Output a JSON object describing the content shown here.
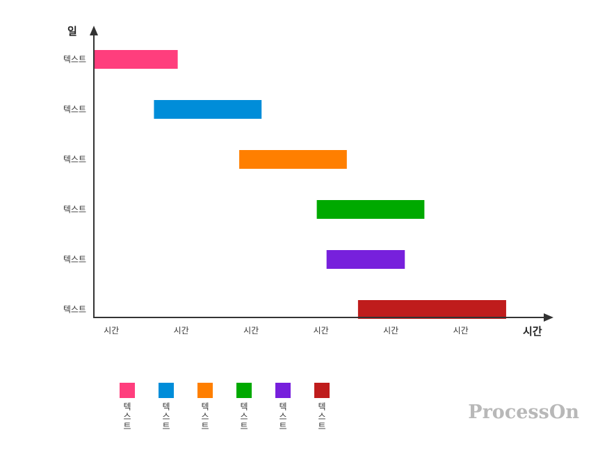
{
  "chart_data": {
    "type": "gantt",
    "title": "",
    "xlabel": "시간",
    "ylabel": "일",
    "x_tick_labels": [
      "시간",
      "시간",
      "시간",
      "시간",
      "시간",
      "시간"
    ],
    "xlim": [
      0,
      6.6
    ],
    "tasks": [
      {
        "label": "텍스트",
        "start": 0.0,
        "end": 1.2,
        "color": "#FF3E7D"
      },
      {
        "label": "텍스트",
        "start": 0.86,
        "end": 2.4,
        "color": "#008DD9"
      },
      {
        "label": "텍스트",
        "start": 2.08,
        "end": 3.62,
        "color": "#FF7F00"
      },
      {
        "label": "텍스트",
        "start": 3.19,
        "end": 4.73,
        "color": "#00A900"
      },
      {
        "label": "텍스트",
        "start": 3.33,
        "end": 4.45,
        "color": "#7720DC"
      },
      {
        "label": "텍스트",
        "start": 3.78,
        "end": 5.9,
        "color": "#BF1C1C"
      }
    ],
    "legend": {
      "placement": "bottom-left",
      "entries": [
        {
          "label": "텍스트",
          "color": "#FF3E7D"
        },
        {
          "label": "텍스트",
          "color": "#008DD9"
        },
        {
          "label": "텍스트",
          "color": "#FF7F00"
        },
        {
          "label": "텍스트",
          "color": "#00A900"
        },
        {
          "label": "텍스트",
          "color": "#7720DC"
        },
        {
          "label": "텍스트",
          "color": "#BF1C1C"
        }
      ]
    },
    "grid": false
  },
  "watermark": "ProcessOn"
}
